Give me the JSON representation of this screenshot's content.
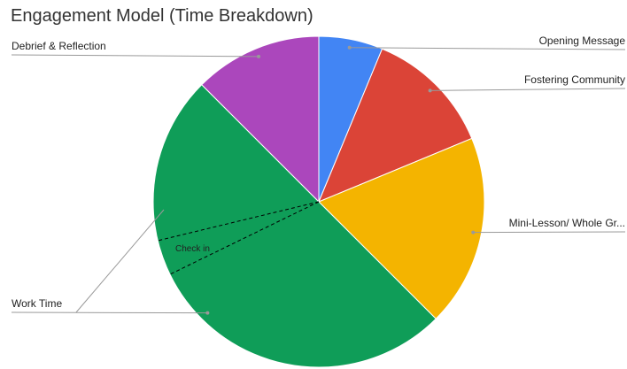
{
  "chart_data": {
    "type": "pie",
    "title": "Engagement Model (Time Breakdown)",
    "categories": [
      "Opening Message",
      "Fostering Community",
      "Mini-Lesson/ Whole Gr...",
      "Work Time",
      "Debrief & Reflection"
    ],
    "values": [
      6.25,
      12.5,
      18.75,
      50,
      12.5
    ],
    "colors": [
      "#4285f4",
      "#db4437",
      "#f4b400",
      "#0f9d58",
      "#ab47bc"
    ],
    "annotation": "Check in"
  }
}
